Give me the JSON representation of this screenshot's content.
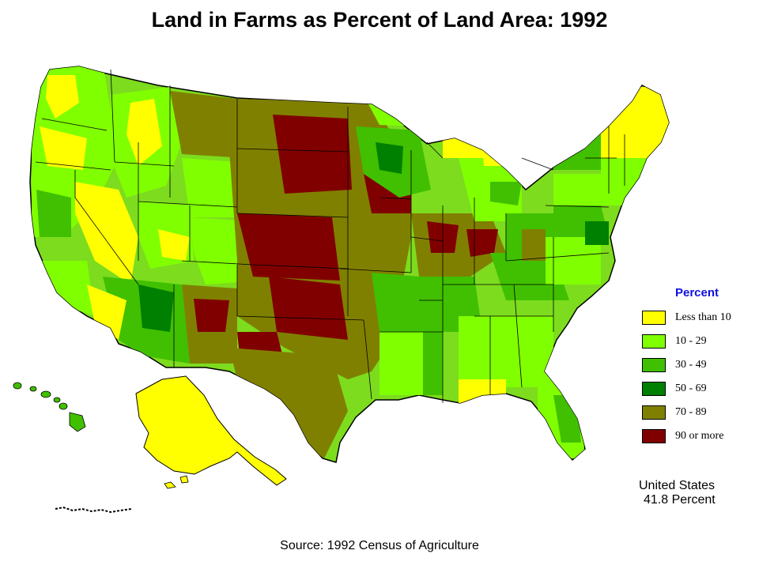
{
  "title": "Land in Farms as Percent of Land Area:  1992",
  "legend": {
    "title": "Percent",
    "items": [
      {
        "label": "Less than 10",
        "color": "#ffff00"
      },
      {
        "label": "10  -  29",
        "color": "#80ff00"
      },
      {
        "label": "30  -  49",
        "color": "#40c000"
      },
      {
        "label": "50  -  69",
        "color": "#008000"
      },
      {
        "label": "70  -  89",
        "color": "#808000"
      },
      {
        "label": "90 or more",
        "color": "#800000"
      }
    ]
  },
  "summary": {
    "line1": "United States",
    "line2": "41.8 Percent"
  },
  "source": "Source:  1992 Census of Agriculture"
}
